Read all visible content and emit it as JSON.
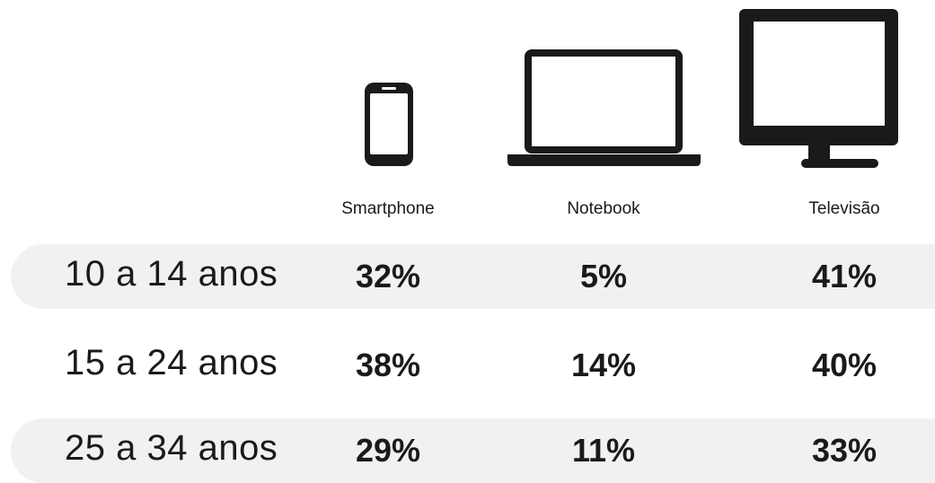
{
  "table": {
    "columns": [
      "Smartphone",
      "Notebook",
      "Televisão"
    ],
    "rows": [
      {
        "label": "10 a 14 anos",
        "cells": [
          "32%",
          "5%",
          "41%"
        ]
      },
      {
        "label": "15 a 24 anos",
        "cells": [
          "38%",
          "14%",
          "40%"
        ]
      },
      {
        "label": "25 a 34 anos",
        "cells": [
          "29%",
          "11%",
          "33%"
        ]
      }
    ]
  }
}
